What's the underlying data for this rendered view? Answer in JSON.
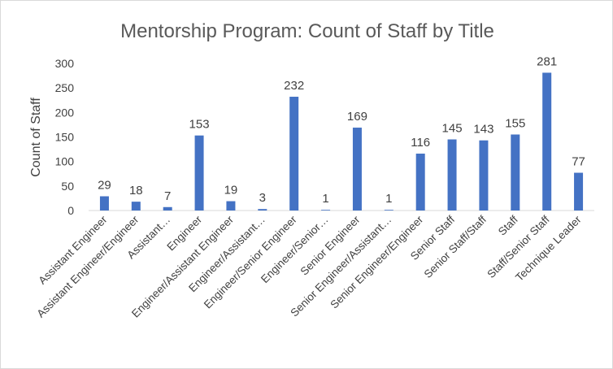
{
  "chart_data": {
    "type": "bar",
    "title": "Mentorship Program: Count of Staff by Title",
    "xlabel": "",
    "ylabel": "Count of Staff",
    "ylim": [
      0,
      300
    ],
    "yticks": [
      0,
      50,
      100,
      150,
      200,
      250,
      300
    ],
    "grid": false,
    "legend": "none",
    "bar_color": "#4472c4",
    "categories": [
      "Assistant Engineer",
      "Assistant Engineer/Engineer",
      "Assistant…",
      "Engineer",
      "Engineer/Assistant Engineer",
      "Engineer/Assistant…",
      "Engineer/Senior Engineer",
      "Engineer/Senior…",
      "Senior Engineer",
      "Senior Engineer/Assistant…",
      "Senior Engineer/Engineer",
      "Senior Staff",
      "Senior Staff/Staff",
      "Staff",
      "Staff/Senior Staff",
      "Technique Leader"
    ],
    "values": [
      29,
      18,
      7,
      153,
      19,
      3,
      232,
      1,
      169,
      1,
      116,
      145,
      143,
      155,
      281,
      77
    ]
  }
}
